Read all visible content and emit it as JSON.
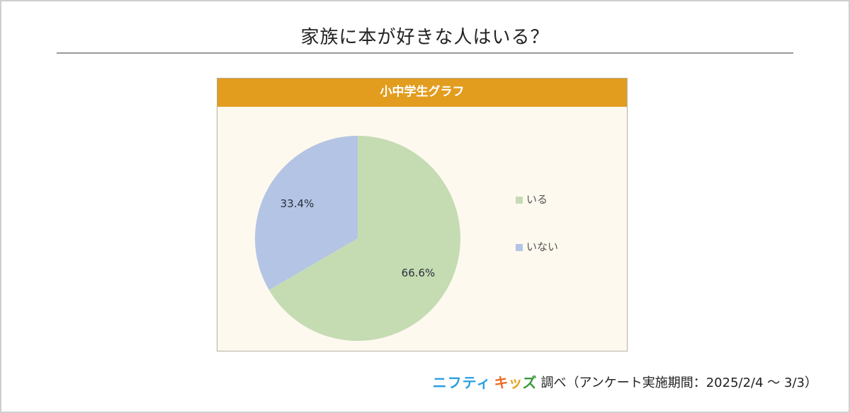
{
  "page": {
    "title": "家族に本が好きな人はいる？"
  },
  "panel": {
    "header": "小中学生グラフ",
    "header_color": "#e29d1f",
    "background": "#fdf9ee"
  },
  "legend": {
    "items": [
      {
        "label": "いる",
        "color": "#c5dcb3"
      },
      {
        "label": "いない",
        "color": "#b4c4e4"
      }
    ]
  },
  "source": {
    "brand_part1": "ニフティ",
    "brand_part2_chars": [
      "キ",
      "ッ",
      "ズ"
    ],
    "suffix": "調べ（アンケート実施期間：2025/2/4 〜 3/3）"
  },
  "chart_data": {
    "type": "pie",
    "title": "家族に本が好きな人はいる？",
    "subtitle": "小中学生グラフ",
    "categories": [
      "いる",
      "いない"
    ],
    "values": [
      66.6,
      33.4
    ],
    "unit": "%",
    "data_labels": [
      "66.6%",
      "33.4%"
    ],
    "colors": [
      "#c5dcb3",
      "#b4c4e4"
    ],
    "start_angle_deg": 0,
    "direction": "clockwise",
    "legend_position": "right"
  }
}
